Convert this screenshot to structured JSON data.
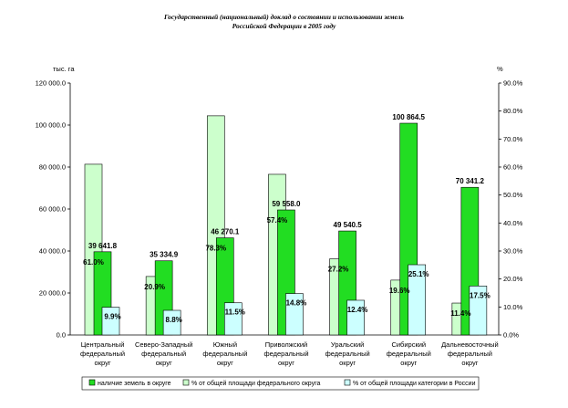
{
  "chart_data": {
    "type": "bar",
    "title_lines": [
      "Государственный (национальный) доклад о состоянии и использовании земель",
      "Российской Федерации в 2005 году"
    ],
    "y_left_unit": "тыс. га",
    "y_right_unit": "%",
    "y_left_ticks": [
      "0.0",
      "20 000.0",
      "40 000.0",
      "60 000.0",
      "80 000.0",
      "100 000.0",
      "120 000.0"
    ],
    "y_right_ticks": [
      "0.0%",
      "10.0%",
      "20.0%",
      "30.0%",
      "40.0%",
      "50.0%",
      "60.0%",
      "70.0%",
      "80.0%",
      "90.0%"
    ],
    "ylim_left": [
      0,
      120000
    ],
    "ylim_right": [
      0,
      90
    ],
    "categories": [
      [
        "Центральный",
        "федеральный",
        "округ"
      ],
      [
        "Северо-Западный",
        "федеральный",
        "округ"
      ],
      [
        "Южный",
        "федеральный",
        "округ"
      ],
      [
        "Приволжский",
        "федеральный",
        "округ"
      ],
      [
        "Уральский",
        "федеральный",
        "округ"
      ],
      [
        "Сибирский",
        "федеральный",
        "округ"
      ],
      [
        "Дальневосточный",
        "федеральный",
        "округ"
      ]
    ],
    "series": [
      {
        "name": "наличие земель в округе",
        "axis": "left",
        "color": "#22dd22",
        "values": [
          39641.8,
          35334.9,
          46270.1,
          59558.0,
          49540.5,
          100864.5,
          70341.2
        ],
        "labels": [
          "39 641.8",
          "35 334.9",
          "46 270.1",
          "59 558.0",
          "49 540.5",
          "100 864.5",
          "70 341.2"
        ]
      },
      {
        "name": "% от общей площади федерального округа",
        "axis": "right",
        "color": "#ccffcc",
        "values": [
          61.0,
          20.9,
          78.3,
          57.4,
          27.2,
          19.6,
          11.4
        ],
        "labels": [
          "61.0%",
          "20.9%",
          "78.3%",
          "57.4%",
          "27.2%",
          "19.6%",
          "11.4%"
        ]
      },
      {
        "name": "% от общей площади категории в России",
        "axis": "right",
        "color": "#ccffff",
        "values": [
          9.9,
          8.8,
          11.5,
          14.8,
          12.4,
          25.1,
          17.5
        ],
        "labels": [
          "9.9%",
          "8.8%",
          "11.5%",
          "14.8%",
          "12.4%",
          "25.1%",
          "17.5%"
        ]
      }
    ],
    "legend_position": "bottom",
    "grid": false
  }
}
